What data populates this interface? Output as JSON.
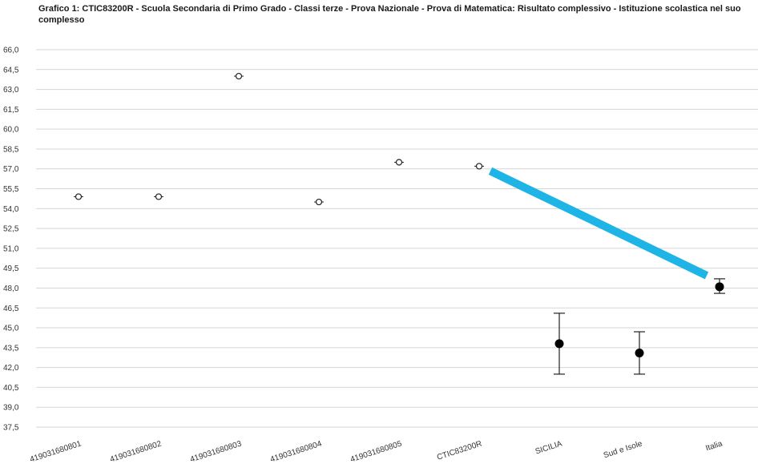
{
  "chart_data": {
    "type": "scatter",
    "title": "Grafico 1: CTIC83200R - Scuola Secondaria di Primo Grado - Classi terze - Prova Nazionale - Prova di Matematica: Risultato complessivo - Istituzione scolastica nel suo complesso",
    "xlabel": "",
    "ylabel": "",
    "ylim": [
      37.5,
      66.0
    ],
    "yticks": [
      "37,5",
      "39,0",
      "40,5",
      "42,0",
      "43,5",
      "45,0",
      "46,5",
      "48,0",
      "49,5",
      "51,0",
      "52,5",
      "54,0",
      "55,5",
      "57,0",
      "58,5",
      "60,0",
      "61,5",
      "63,0",
      "64,5",
      "66,0"
    ],
    "grid": true,
    "categories": [
      "419031680801",
      "419031680802",
      "419031680803",
      "419031680804",
      "419031680805",
      "CTIC83200R",
      "SICILIA",
      "Sud e Isole",
      "Italia"
    ],
    "series": [
      {
        "values": [
          54.9,
          54.9,
          64.0,
          54.5,
          57.5,
          57.2,
          43.8,
          43.1,
          48.1
        ],
        "error_low": [
          54.9,
          54.9,
          64.0,
          54.5,
          57.5,
          57.2,
          41.5,
          41.5,
          47.6
        ],
        "error_high": [
          54.9,
          54.9,
          64.0,
          54.5,
          57.5,
          57.2,
          46.1,
          44.7,
          48.7
        ],
        "marker": [
          "hollow",
          "hollow",
          "hollow",
          "hollow",
          "hollow",
          "hollow",
          "filled",
          "filled",
          "filled"
        ]
      }
    ],
    "annotation": {
      "type": "arrow-line",
      "from_category": "CTIC83200R",
      "to_category": "Italia",
      "color": "#1eb4e6"
    }
  }
}
